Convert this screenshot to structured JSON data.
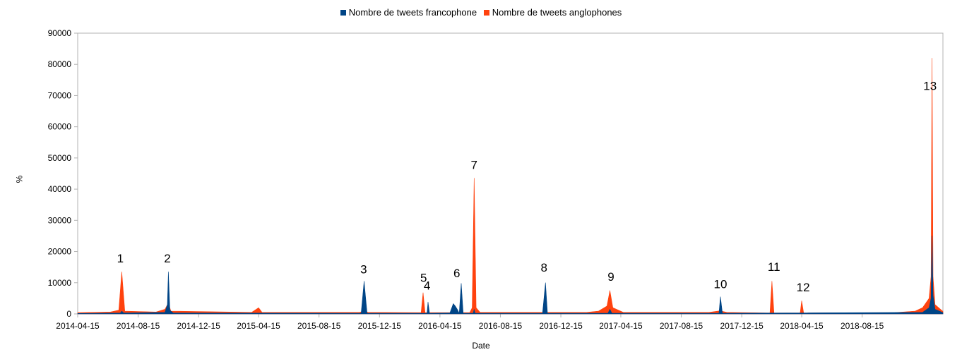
{
  "chart_data": {
    "type": "area",
    "title": "",
    "xlabel": "Date",
    "ylabel": "%",
    "ylim": [
      0,
      90000
    ],
    "yticks": [
      0,
      10000,
      20000,
      30000,
      40000,
      50000,
      60000,
      70000,
      80000,
      90000
    ],
    "xlim": [
      "2014-04-15",
      "2019-01-25"
    ],
    "xticks": [
      "2014-04-15",
      "2014-08-15",
      "2014-12-15",
      "2015-04-15",
      "2015-08-15",
      "2015-12-15",
      "2016-04-15",
      "2016-08-15",
      "2016-12-15",
      "2017-04-15",
      "2017-08-15",
      "2017-12-15",
      "2018-04-15",
      "2018-08-15"
    ],
    "grid": false,
    "legend_position": "top",
    "series": [
      {
        "name": "Nombre de tweets anglophones",
        "color": "#ff420e",
        "points": [
          [
            "2014-04-15",
            400
          ],
          [
            "2014-06-20",
            600
          ],
          [
            "2014-07-07",
            1200
          ],
          [
            "2014-07-13",
            13500
          ],
          [
            "2014-07-19",
            900
          ],
          [
            "2014-09-20",
            600
          ],
          [
            "2014-10-08",
            1500
          ],
          [
            "2014-10-15",
            3500
          ],
          [
            "2014-10-20",
            900
          ],
          [
            "2015-04-01",
            500
          ],
          [
            "2015-04-15",
            2000
          ],
          [
            "2015-04-22",
            500
          ],
          [
            "2015-11-05",
            500
          ],
          [
            "2015-11-14",
            1000
          ],
          [
            "2015-11-22",
            500
          ],
          [
            "2016-03-08",
            400
          ],
          [
            "2016-03-12",
            6800
          ],
          [
            "2016-03-16",
            400
          ],
          [
            "2016-05-10",
            400
          ],
          [
            "2016-06-14",
            400
          ],
          [
            "2016-06-19",
            2000
          ],
          [
            "2016-06-23",
            43500
          ],
          [
            "2016-06-27",
            2000
          ],
          [
            "2016-07-05",
            500
          ],
          [
            "2017-02-05",
            500
          ],
          [
            "2017-03-01",
            900
          ],
          [
            "2017-03-18",
            2500
          ],
          [
            "2017-03-24",
            7500
          ],
          [
            "2017-03-30",
            2000
          ],
          [
            "2017-04-20",
            500
          ],
          [
            "2017-10-10",
            500
          ],
          [
            "2017-11-01",
            1000
          ],
          [
            "2017-11-15",
            500
          ],
          [
            "2018-02-10",
            300
          ],
          [
            "2018-02-14",
            10500
          ],
          [
            "2018-02-18",
            300
          ],
          [
            "2018-04-12",
            300
          ],
          [
            "2018-04-15",
            4200
          ],
          [
            "2018-04-19",
            300
          ],
          [
            "2018-10-20",
            400
          ],
          [
            "2018-11-30",
            900
          ],
          [
            "2018-12-15",
            2000
          ],
          [
            "2018-12-28",
            5000
          ],
          [
            "2019-01-01",
            12000
          ],
          [
            "2019-01-03",
            82000
          ],
          [
            "2019-01-05",
            12000
          ],
          [
            "2019-01-09",
            3000
          ],
          [
            "2019-01-25",
            800
          ]
        ]
      },
      {
        "name": "Nombre de tweets francophone",
        "color": "#004586",
        "points": [
          [
            "2014-04-15",
            150
          ],
          [
            "2014-07-10",
            300
          ],
          [
            "2014-07-13",
            900
          ],
          [
            "2014-07-17",
            300
          ],
          [
            "2014-10-08",
            500
          ],
          [
            "2014-10-13",
            3000
          ],
          [
            "2014-10-15",
            13500
          ],
          [
            "2014-10-18",
            1200
          ],
          [
            "2014-10-25",
            300
          ],
          [
            "2015-11-08",
            200
          ],
          [
            "2015-11-14",
            10500
          ],
          [
            "2015-11-20",
            200
          ],
          [
            "2016-03-20",
            200
          ],
          [
            "2016-03-22",
            3800
          ],
          [
            "2016-03-25",
            200
          ],
          [
            "2016-05-05",
            300
          ],
          [
            "2016-05-12",
            3300
          ],
          [
            "2016-05-16",
            2500
          ],
          [
            "2016-05-20",
            1500
          ],
          [
            "2016-05-24",
            200
          ],
          [
            "2016-05-28",
            9800
          ],
          [
            "2016-06-01",
            200
          ],
          [
            "2016-06-21",
            200
          ],
          [
            "2016-06-23",
            1500
          ],
          [
            "2016-06-25",
            200
          ],
          [
            "2016-11-08",
            200
          ],
          [
            "2016-11-14",
            10000
          ],
          [
            "2016-11-18",
            200
          ],
          [
            "2017-03-20",
            200
          ],
          [
            "2017-03-24",
            1500
          ],
          [
            "2017-03-28",
            200
          ],
          [
            "2017-10-30",
            200
          ],
          [
            "2017-11-02",
            5500
          ],
          [
            "2017-11-06",
            200
          ],
          [
            "2018-12-15",
            500
          ],
          [
            "2018-12-28",
            2000
          ],
          [
            "2019-01-01",
            5000
          ],
          [
            "2019-01-03",
            25000
          ],
          [
            "2019-01-05",
            6000
          ],
          [
            "2019-01-09",
            1500
          ],
          [
            "2019-01-25",
            400
          ]
        ]
      }
    ],
    "annotations": [
      {
        "text": "1",
        "x": "2014-07-10",
        "y": 16500
      },
      {
        "text": "2",
        "x": "2014-10-13",
        "y": 16500
      },
      {
        "text": "3",
        "x": "2015-11-13",
        "y": 13000
      },
      {
        "text": "4",
        "x": "2016-03-20",
        "y": 7800
      },
      {
        "text": "5",
        "x": "2016-03-13",
        "y": 10300
      },
      {
        "text": "6",
        "x": "2016-05-19",
        "y": 11800
      },
      {
        "text": "7",
        "x": "2016-06-23",
        "y": 46500
      },
      {
        "text": "8",
        "x": "2016-11-11",
        "y": 13600
      },
      {
        "text": "9",
        "x": "2017-03-26",
        "y": 10600
      },
      {
        "text": "10",
        "x": "2017-11-02",
        "y": 8200
      },
      {
        "text": "11",
        "x": "2018-02-18",
        "y": 13800
      },
      {
        "text": "12",
        "x": "2018-04-18",
        "y": 7200
      },
      {
        "text": "13",
        "x": "2018-12-30",
        "y": 71800
      }
    ]
  }
}
